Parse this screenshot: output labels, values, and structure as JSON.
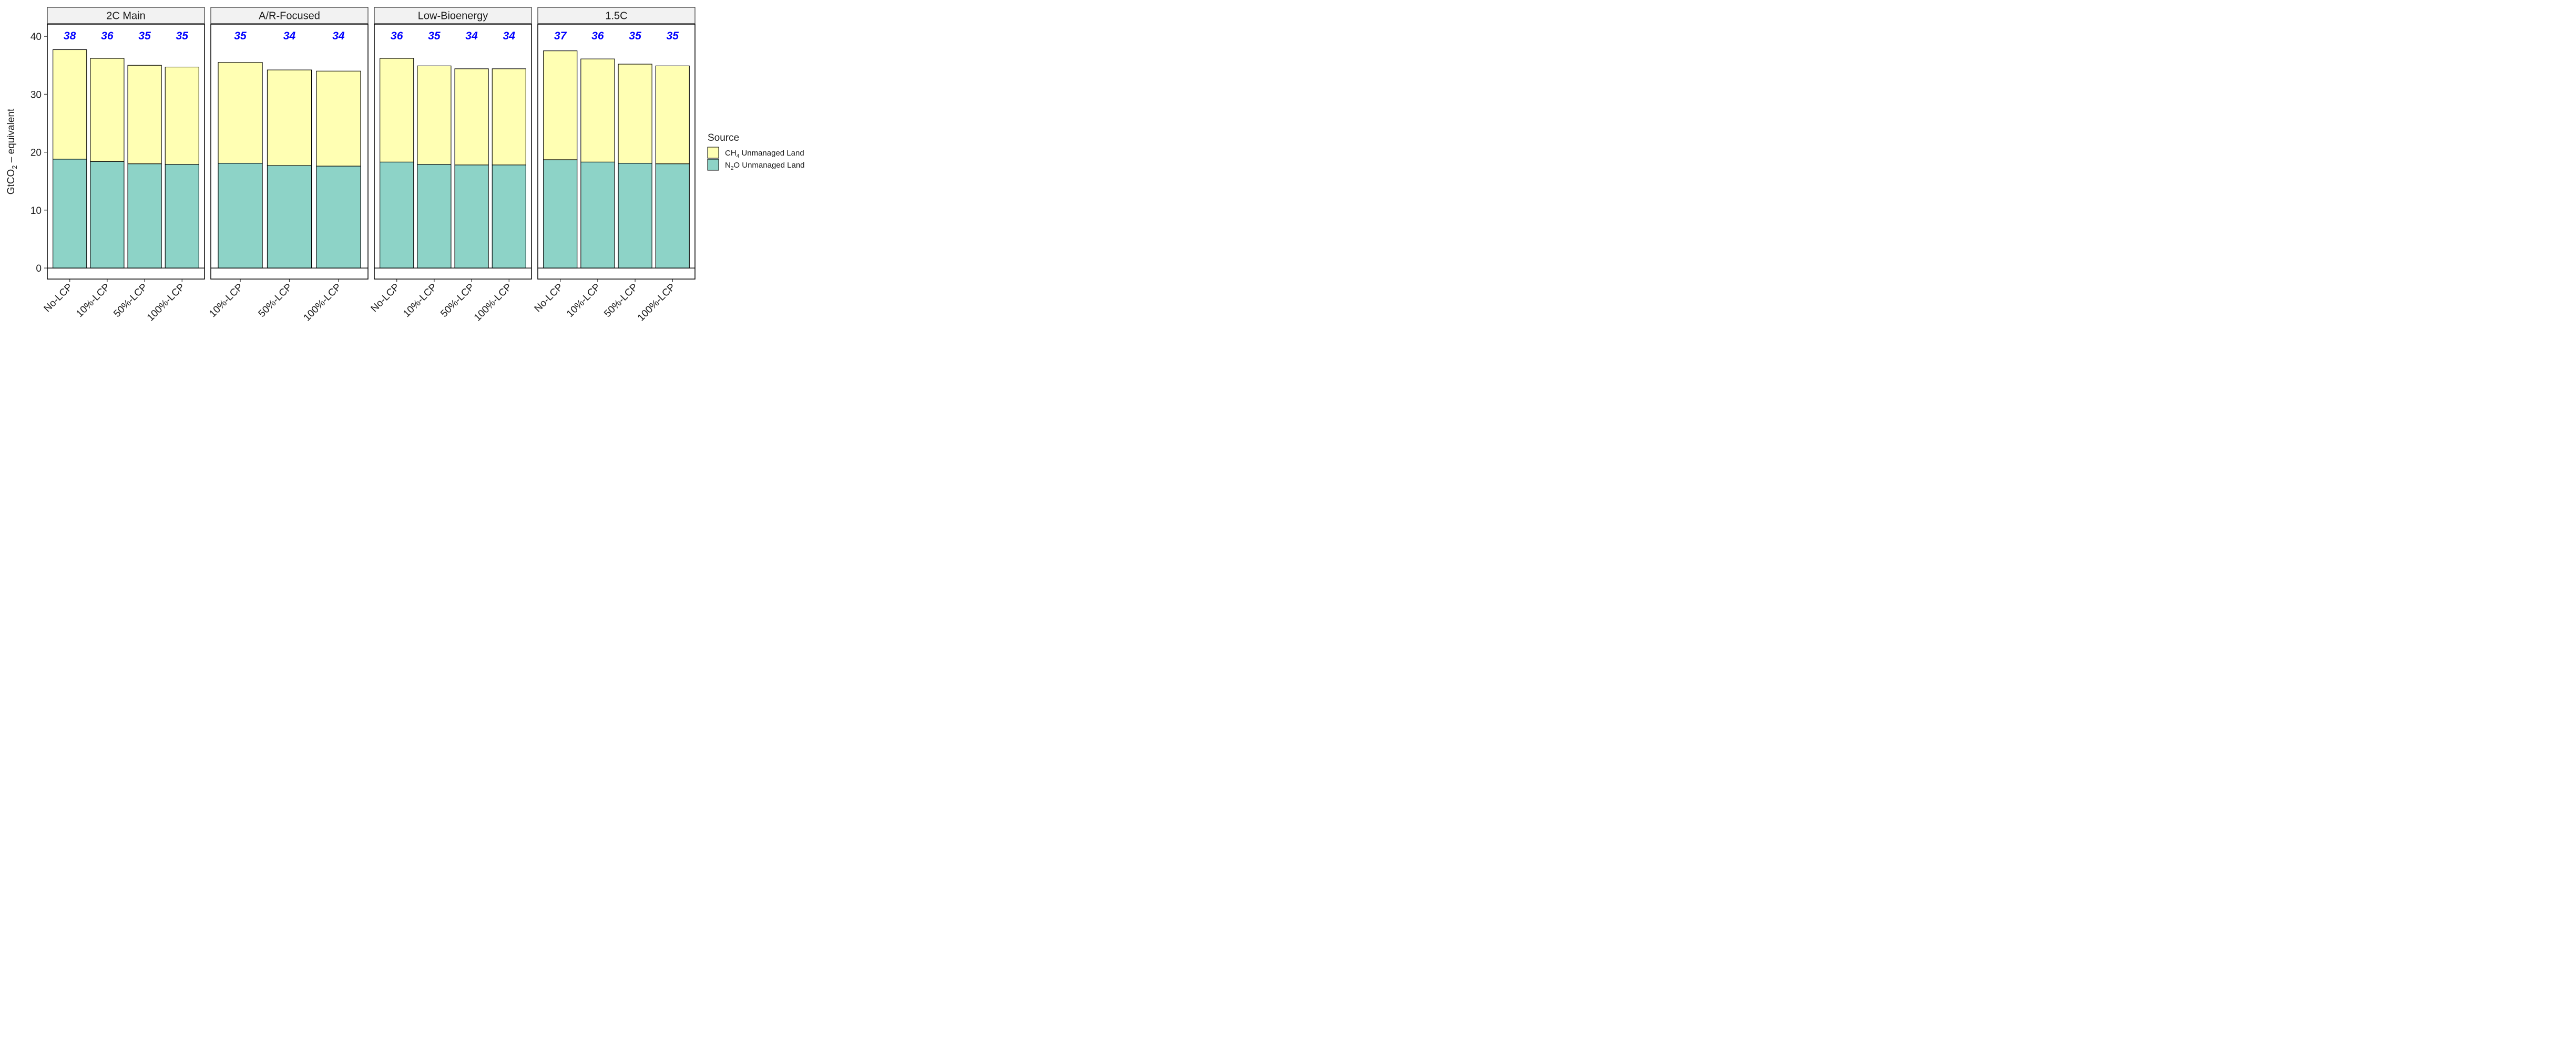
{
  "chart_data": {
    "type": "bar",
    "stacked": true,
    "facets": [
      {
        "title": "2C Main",
        "categories": [
          "No-LCP",
          "10%-LCP",
          "50%-LCP",
          "100%-LCP"
        ],
        "series": [
          {
            "name": "N2O Unmanaged Land",
            "values": [
              18.8,
              18.4,
              18.0,
              17.9
            ]
          },
          {
            "name": "CH4 Unmanaged Land",
            "values": [
              18.9,
              17.8,
              17.0,
              16.8
            ]
          }
        ],
        "total_labels": [
          "38",
          "36",
          "35",
          "35"
        ]
      },
      {
        "title": "A/R-Focused",
        "categories": [
          "10%-LCP",
          "50%-LCP",
          "100%-LCP"
        ],
        "series": [
          {
            "name": "N2O Unmanaged Land",
            "values": [
              18.1,
              17.7,
              17.6
            ]
          },
          {
            "name": "CH4 Unmanaged Land",
            "values": [
              17.4,
              16.5,
              16.4
            ]
          }
        ],
        "total_labels": [
          "35",
          "34",
          "34"
        ]
      },
      {
        "title": "Low-Bioenergy",
        "categories": [
          "No-LCP",
          "10%-LCP",
          "50%-LCP",
          "100%-LCP"
        ],
        "series": [
          {
            "name": "N2O Unmanaged Land",
            "values": [
              18.3,
              17.9,
              17.8,
              17.8
            ]
          },
          {
            "name": "CH4 Unmanaged Land",
            "values": [
              17.9,
              17.0,
              16.6,
              16.6
            ]
          }
        ],
        "total_labels": [
          "36",
          "35",
          "34",
          "34"
        ]
      },
      {
        "title": "1.5C",
        "categories": [
          "No-LCP",
          "10%-LCP",
          "50%-LCP",
          "100%-LCP"
        ],
        "series": [
          {
            "name": "N2O Unmanaged Land",
            "values": [
              18.7,
              18.3,
              18.1,
              18.0
            ]
          },
          {
            "name": "CH4 Unmanaged Land",
            "values": [
              18.8,
              17.8,
              17.1,
              16.9
            ]
          }
        ],
        "total_labels": [
          "37",
          "36",
          "35",
          "35"
        ]
      }
    ],
    "ylabel": {
      "base": "GtCO",
      "sub": "2",
      "rest": " – equivalent"
    },
    "ylim": [
      -1.9,
      42.1
    ],
    "yticks": [
      0,
      10,
      20,
      30,
      40
    ],
    "grid": false,
    "legend": {
      "title": "Source",
      "placement": "right",
      "items": [
        {
          "series": "CH4 Unmanaged Land",
          "base": "CH",
          "sub": "4",
          "rest": " Unmanaged Land",
          "color": "#ffffb3"
        },
        {
          "series": "N2O Unmanaged Land",
          "base": "N",
          "sub": "2",
          "rest": "O Unmanaged Land",
          "color": "#8dd3c7"
        }
      ]
    },
    "colors": {
      "N2O Unmanaged Land": "#8dd3c7",
      "CH4 Unmanaged Land": "#ffffb3",
      "total_label": "#0000ff",
      "strip_background": "#f2f2f2"
    }
  }
}
